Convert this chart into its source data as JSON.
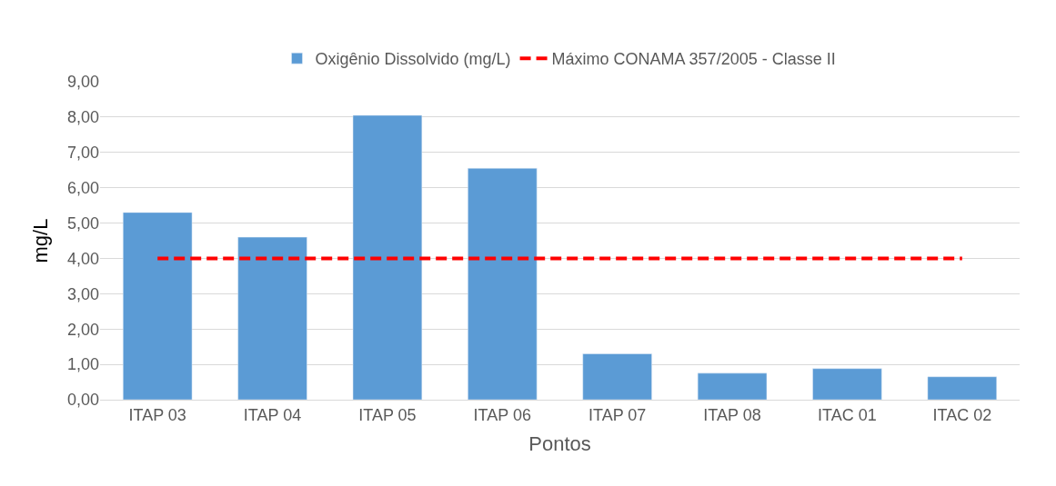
{
  "chart_data": {
    "type": "bar",
    "xlabel": "Pontos",
    "ylabel": "mg/L",
    "categories": [
      "ITAP 03",
      "ITAP 04",
      "ITAP 05",
      "ITAP 06",
      "ITAP 07",
      "ITAP 08",
      "ITAC 01",
      "ITAC 02"
    ],
    "series": [
      {
        "name": "Oxigênio Dissolvido (mg/L)",
        "color": "#5b9bd5",
        "values": [
          5.3,
          4.6,
          8.05,
          6.55,
          1.3,
          0.75,
          0.88,
          0.65
        ]
      },
      {
        "name": "Máximo CONAMA 357/2005 - Classe II",
        "type": "line",
        "line_style": "dashed",
        "color": "#ff0000",
        "values": [
          4,
          4,
          4,
          4,
          4,
          4,
          4,
          4
        ]
      }
    ],
    "ylim": [
      0,
      9
    ],
    "yticks": [
      {
        "value": 0,
        "label": "0,00"
      },
      {
        "value": 1,
        "label": "1,00"
      },
      {
        "value": 2,
        "label": "2,00"
      },
      {
        "value": 3,
        "label": "3,00"
      },
      {
        "value": 4,
        "label": "4,00"
      },
      {
        "value": 5,
        "label": "5,00"
      },
      {
        "value": 6,
        "label": "6,00"
      },
      {
        "value": 7,
        "label": "7,00"
      },
      {
        "value": 8,
        "label": "8,00"
      },
      {
        "value": 9,
        "label": "9,00"
      }
    ],
    "grid": "y",
    "legend": "top"
  }
}
